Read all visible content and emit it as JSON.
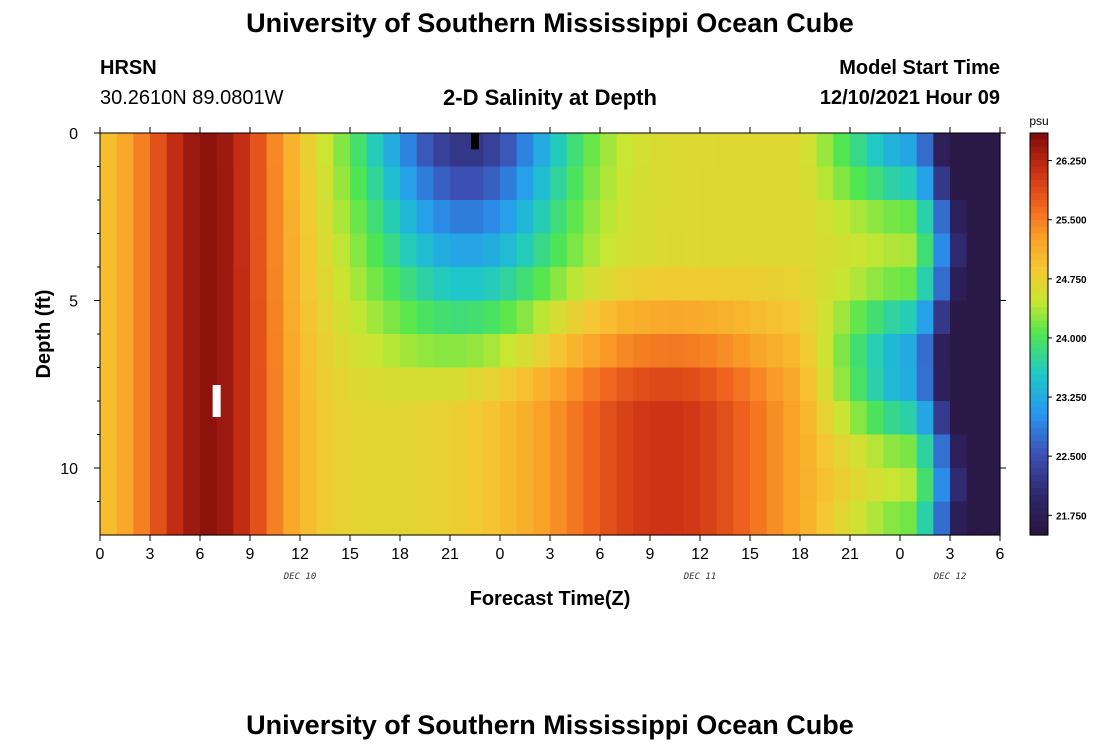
{
  "header": {
    "title": "University of Southern Mississippi Ocean Cube",
    "station": "HRSN",
    "coords": "30.2610N  89.0801W",
    "plot_title": "2-D Salinity at Depth",
    "model_label": "Model Start Time",
    "model_time": "12/10/2021 Hour 09"
  },
  "footer": {
    "title": "University of Southern Mississippi Ocean Cube"
  },
  "chart_data": {
    "type": "heatmap",
    "title": "2-D Salinity at Depth",
    "xlabel": "Forecast Time(Z)",
    "ylabel": "Depth (ft)",
    "x_ticks": [
      "0",
      "3",
      "6",
      "9",
      "12",
      "15",
      "18",
      "21",
      "0",
      "3",
      "6",
      "9",
      "12",
      "15",
      "18",
      "21",
      "0",
      "3",
      "6"
    ],
    "x_hours_range": [
      0,
      54
    ],
    "day_labels": [
      {
        "label": "DEC 10",
        "hour": 12
      },
      {
        "label": "DEC 11",
        "hour": 36
      },
      {
        "label": "DEC 12",
        "hour": 51
      }
    ],
    "y_ticks": [
      "0",
      "5",
      "10"
    ],
    "y_range_ft": [
      0,
      12
    ],
    "colorbar": {
      "unit": "psu",
      "ticks": [
        "26.250",
        "25.500",
        "24.750",
        "24.000",
        "23.250",
        "22.500",
        "21.750"
      ],
      "range": [
        21.5,
        26.6
      ]
    },
    "markers": [
      {
        "label": "black-marker",
        "hour": 22.5,
        "depth": 0.25
      },
      {
        "label": "white-marker",
        "hour": 7,
        "depth": 8
      }
    ],
    "x_bins": 54,
    "depth_bins": 12
  }
}
